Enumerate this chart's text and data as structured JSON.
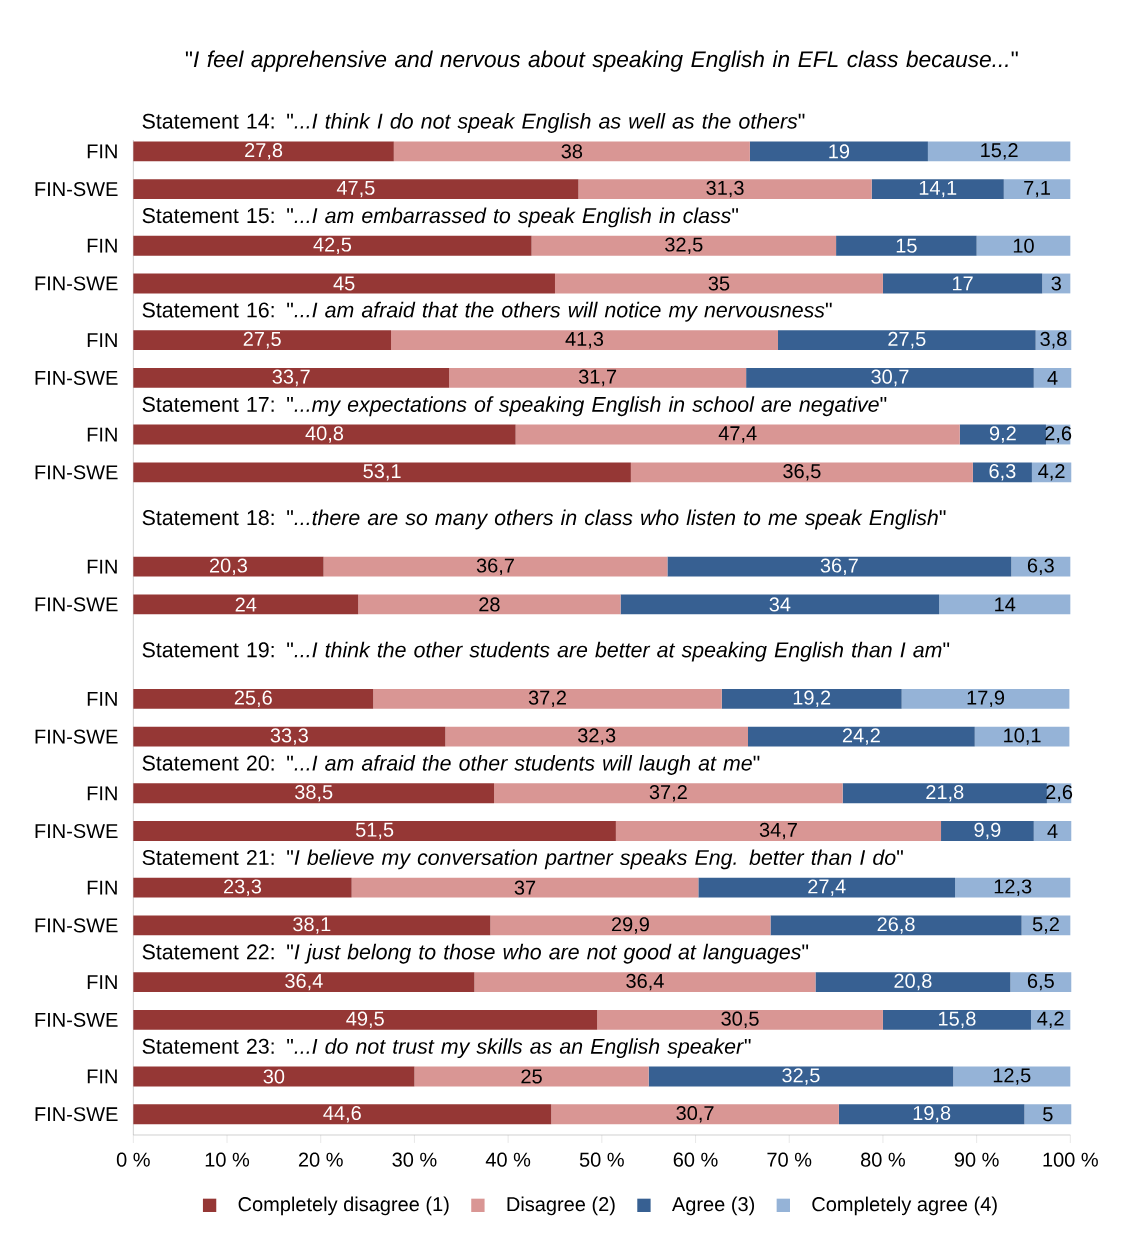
{
  "chart_data": {
    "type": "bar",
    "orientation": "horizontal",
    "stacked": true,
    "title": "\"*I feel apprehensive and nervous about speaking English in EFL class because...*\"",
    "annotations": [
      "Statement 14: \"*...I think I do not speak English as well as the others*\"",
      "Statement 15: \"*...I am embarrassed to speak English in class*\"",
      "Statement 16:  \"*...I am afraid that the others will notice my nervousness*\"",
      "Statement 17: \"*...my expectations of speaking English in school are negative*\"",
      "Statement 18:  \"*...there are so many others in class who listen to me speak English*\"",
      "Statement 19: \"*...I think the other students are better at speaking English than I am*\"",
      "Statement 20: \"*...I am afraid the other students will laugh at me*\"",
      "Statement 21: \"*I believe my conversation partner speaks Eng. better than I do*\"",
      "Statement 22: \"*I just belong to those who are not good at languages*\"",
      "Statement 23: \"*...I do not trust my skills as an English speaker*\""
    ],
    "categories": [
      "FIN",
      null,
      "FIN-SWE",
      null,
      null,
      "FIN",
      null,
      "FIN-SWE",
      null,
      null,
      "FIN",
      null,
      "FIN-SWE",
      null,
      null,
      "FIN",
      null,
      "FIN-SWE",
      null,
      null,
      null,
      null,
      "FIN",
      null,
      "FIN-SWE",
      null,
      null,
      null,
      null,
      "FIN",
      null,
      "FIN-SWE",
      null,
      null,
      "FIN",
      null,
      "FIN-SWE",
      null,
      null,
      "FIN",
      null,
      "FIN-SWE",
      null,
      null,
      "FIN",
      null,
      "FIN-SWE",
      null,
      null,
      "FIN",
      null,
      "FIN-SWE"
    ],
    "series": [
      {
        "name": "Completely disagree (1)",
        "color": "#953735",
        "values": [
          27.8,
          null,
          47.5,
          null,
          null,
          42.5,
          null,
          45,
          null,
          null,
          27.5,
          null,
          33.7,
          null,
          null,
          40.8,
          null,
          53.1,
          null,
          null,
          null,
          null,
          20.3,
          null,
          24,
          null,
          null,
          null,
          null,
          25.6,
          null,
          33.3,
          null,
          null,
          38.5,
          null,
          51.5,
          null,
          null,
          23.3,
          null,
          38.1,
          null,
          null,
          36.4,
          null,
          49.5,
          null,
          null,
          30,
          null,
          44.6
        ],
        "value_labels": [
          "27,8",
          null,
          "47,5",
          null,
          null,
          "42,5",
          null,
          "45",
          null,
          null,
          "27,5",
          null,
          "33,7",
          null,
          null,
          "40,8",
          null,
          "53,1",
          null,
          null,
          null,
          null,
          "20,3",
          null,
          "24",
          null,
          null,
          null,
          null,
          "25,6",
          null,
          "33,3",
          null,
          null,
          "38,5",
          null,
          "51,5",
          null,
          null,
          "23,3",
          null,
          "38,1",
          null,
          null,
          "36,4",
          null,
          "49,5",
          null,
          null,
          "30",
          null,
          "44,6"
        ]
      },
      {
        "name": "Disagree (2)",
        "color": "#d99694",
        "values": [
          38,
          null,
          31.3,
          null,
          null,
          32.5,
          null,
          35,
          null,
          null,
          41.3,
          null,
          31.7,
          null,
          null,
          47.4,
          null,
          36.5,
          null,
          null,
          null,
          null,
          36.7,
          null,
          28,
          null,
          null,
          null,
          null,
          37.2,
          null,
          32.3,
          null,
          null,
          37.2,
          null,
          34.7,
          null,
          null,
          37,
          null,
          29.9,
          null,
          null,
          36.4,
          null,
          30.5,
          null,
          null,
          25,
          null,
          30.7
        ],
        "value_labels": [
          "38",
          null,
          "31,3",
          null,
          null,
          "32,5",
          null,
          "35",
          null,
          null,
          "41,3",
          null,
          "31,7",
          null,
          null,
          "47,4",
          null,
          "36,5",
          null,
          null,
          null,
          null,
          "36,7",
          null,
          "28",
          null,
          null,
          null,
          null,
          "37,2",
          null,
          "32,3",
          null,
          null,
          "37,2",
          null,
          "34,7",
          null,
          null,
          "37",
          null,
          "29,9",
          null,
          null,
          "36,4",
          null,
          "30,5",
          null,
          null,
          "25",
          null,
          "30,7"
        ]
      },
      {
        "name": "Agree (3)",
        "color": "#376092",
        "values": [
          19,
          null,
          14.1,
          null,
          null,
          15,
          null,
          17,
          null,
          null,
          27.5,
          null,
          30.7,
          null,
          null,
          9.2,
          null,
          6.3,
          null,
          null,
          null,
          null,
          36.7,
          null,
          34,
          null,
          null,
          null,
          null,
          19.2,
          null,
          24.2,
          null,
          null,
          21.8,
          null,
          9.9,
          null,
          null,
          27.4,
          null,
          26.8,
          null,
          null,
          20.8,
          null,
          15.8,
          null,
          null,
          32.5,
          null,
          19.8
        ],
        "value_labels": [
          "19",
          null,
          "14,1",
          null,
          null,
          "15",
          null,
          "17",
          null,
          null,
          "27,5",
          null,
          "30,7",
          null,
          null,
          "9,2",
          null,
          "6,3",
          null,
          null,
          null,
          null,
          "36,7",
          null,
          "34",
          null,
          null,
          null,
          null,
          "19,2",
          null,
          "24,2",
          null,
          null,
          "21,8",
          null,
          "9,9",
          null,
          null,
          "27,4",
          null,
          "26,8",
          null,
          null,
          "20,8",
          null,
          "15,8",
          null,
          null,
          "32,5",
          null,
          "19,8"
        ]
      },
      {
        "name": "Completely agree (4)",
        "color": "#95b3d7",
        "values": [
          15.2,
          null,
          7.1,
          null,
          null,
          10,
          null,
          3,
          null,
          null,
          3.8,
          null,
          4,
          null,
          null,
          2.6,
          null,
          4.2,
          null,
          null,
          null,
          null,
          6.3,
          null,
          14,
          null,
          null,
          null,
          null,
          17.9,
          null,
          10.1,
          null,
          null,
          2.6,
          null,
          4,
          null,
          null,
          12.3,
          null,
          5.2,
          null,
          null,
          6.5,
          null,
          4.2,
          null,
          null,
          12.5,
          null,
          5
        ],
        "value_labels": [
          "15,2",
          null,
          "7,1",
          null,
          null,
          "10",
          null,
          "3",
          null,
          null,
          "3,8",
          null,
          "4",
          null,
          null,
          "2,6",
          null,
          "4,2",
          null,
          null,
          null,
          null,
          "6,3",
          null,
          "14",
          null,
          null,
          null,
          null,
          "17,9",
          null,
          "10,1",
          null,
          null,
          "2,6",
          null,
          "4",
          null,
          null,
          "12,3",
          null,
          "5,2",
          null,
          null,
          "6,5",
          null,
          "4,2",
          null,
          null,
          "12,5",
          null,
          "5"
        ]
      }
    ],
    "xlim": [
      0,
      100
    ],
    "xticks": [
      {
        "value": 0,
        "label": "0 %"
      },
      {
        "value": 10,
        "label": "10 %"
      },
      {
        "value": 20,
        "label": "20 %"
      },
      {
        "value": 30,
        "label": "30 %"
      },
      {
        "value": 40,
        "label": "40 %"
      },
      {
        "value": 50,
        "label": "50 %"
      },
      {
        "value": 60,
        "label": "60 %"
      },
      {
        "value": 70,
        "label": "70 %"
      },
      {
        "value": 80,
        "label": "80 %"
      },
      {
        "value": 90,
        "label": "90 %"
      },
      {
        "value": 100,
        "label": "100 %"
      }
    ],
    "legend": "bottom",
    "grid": false
  }
}
